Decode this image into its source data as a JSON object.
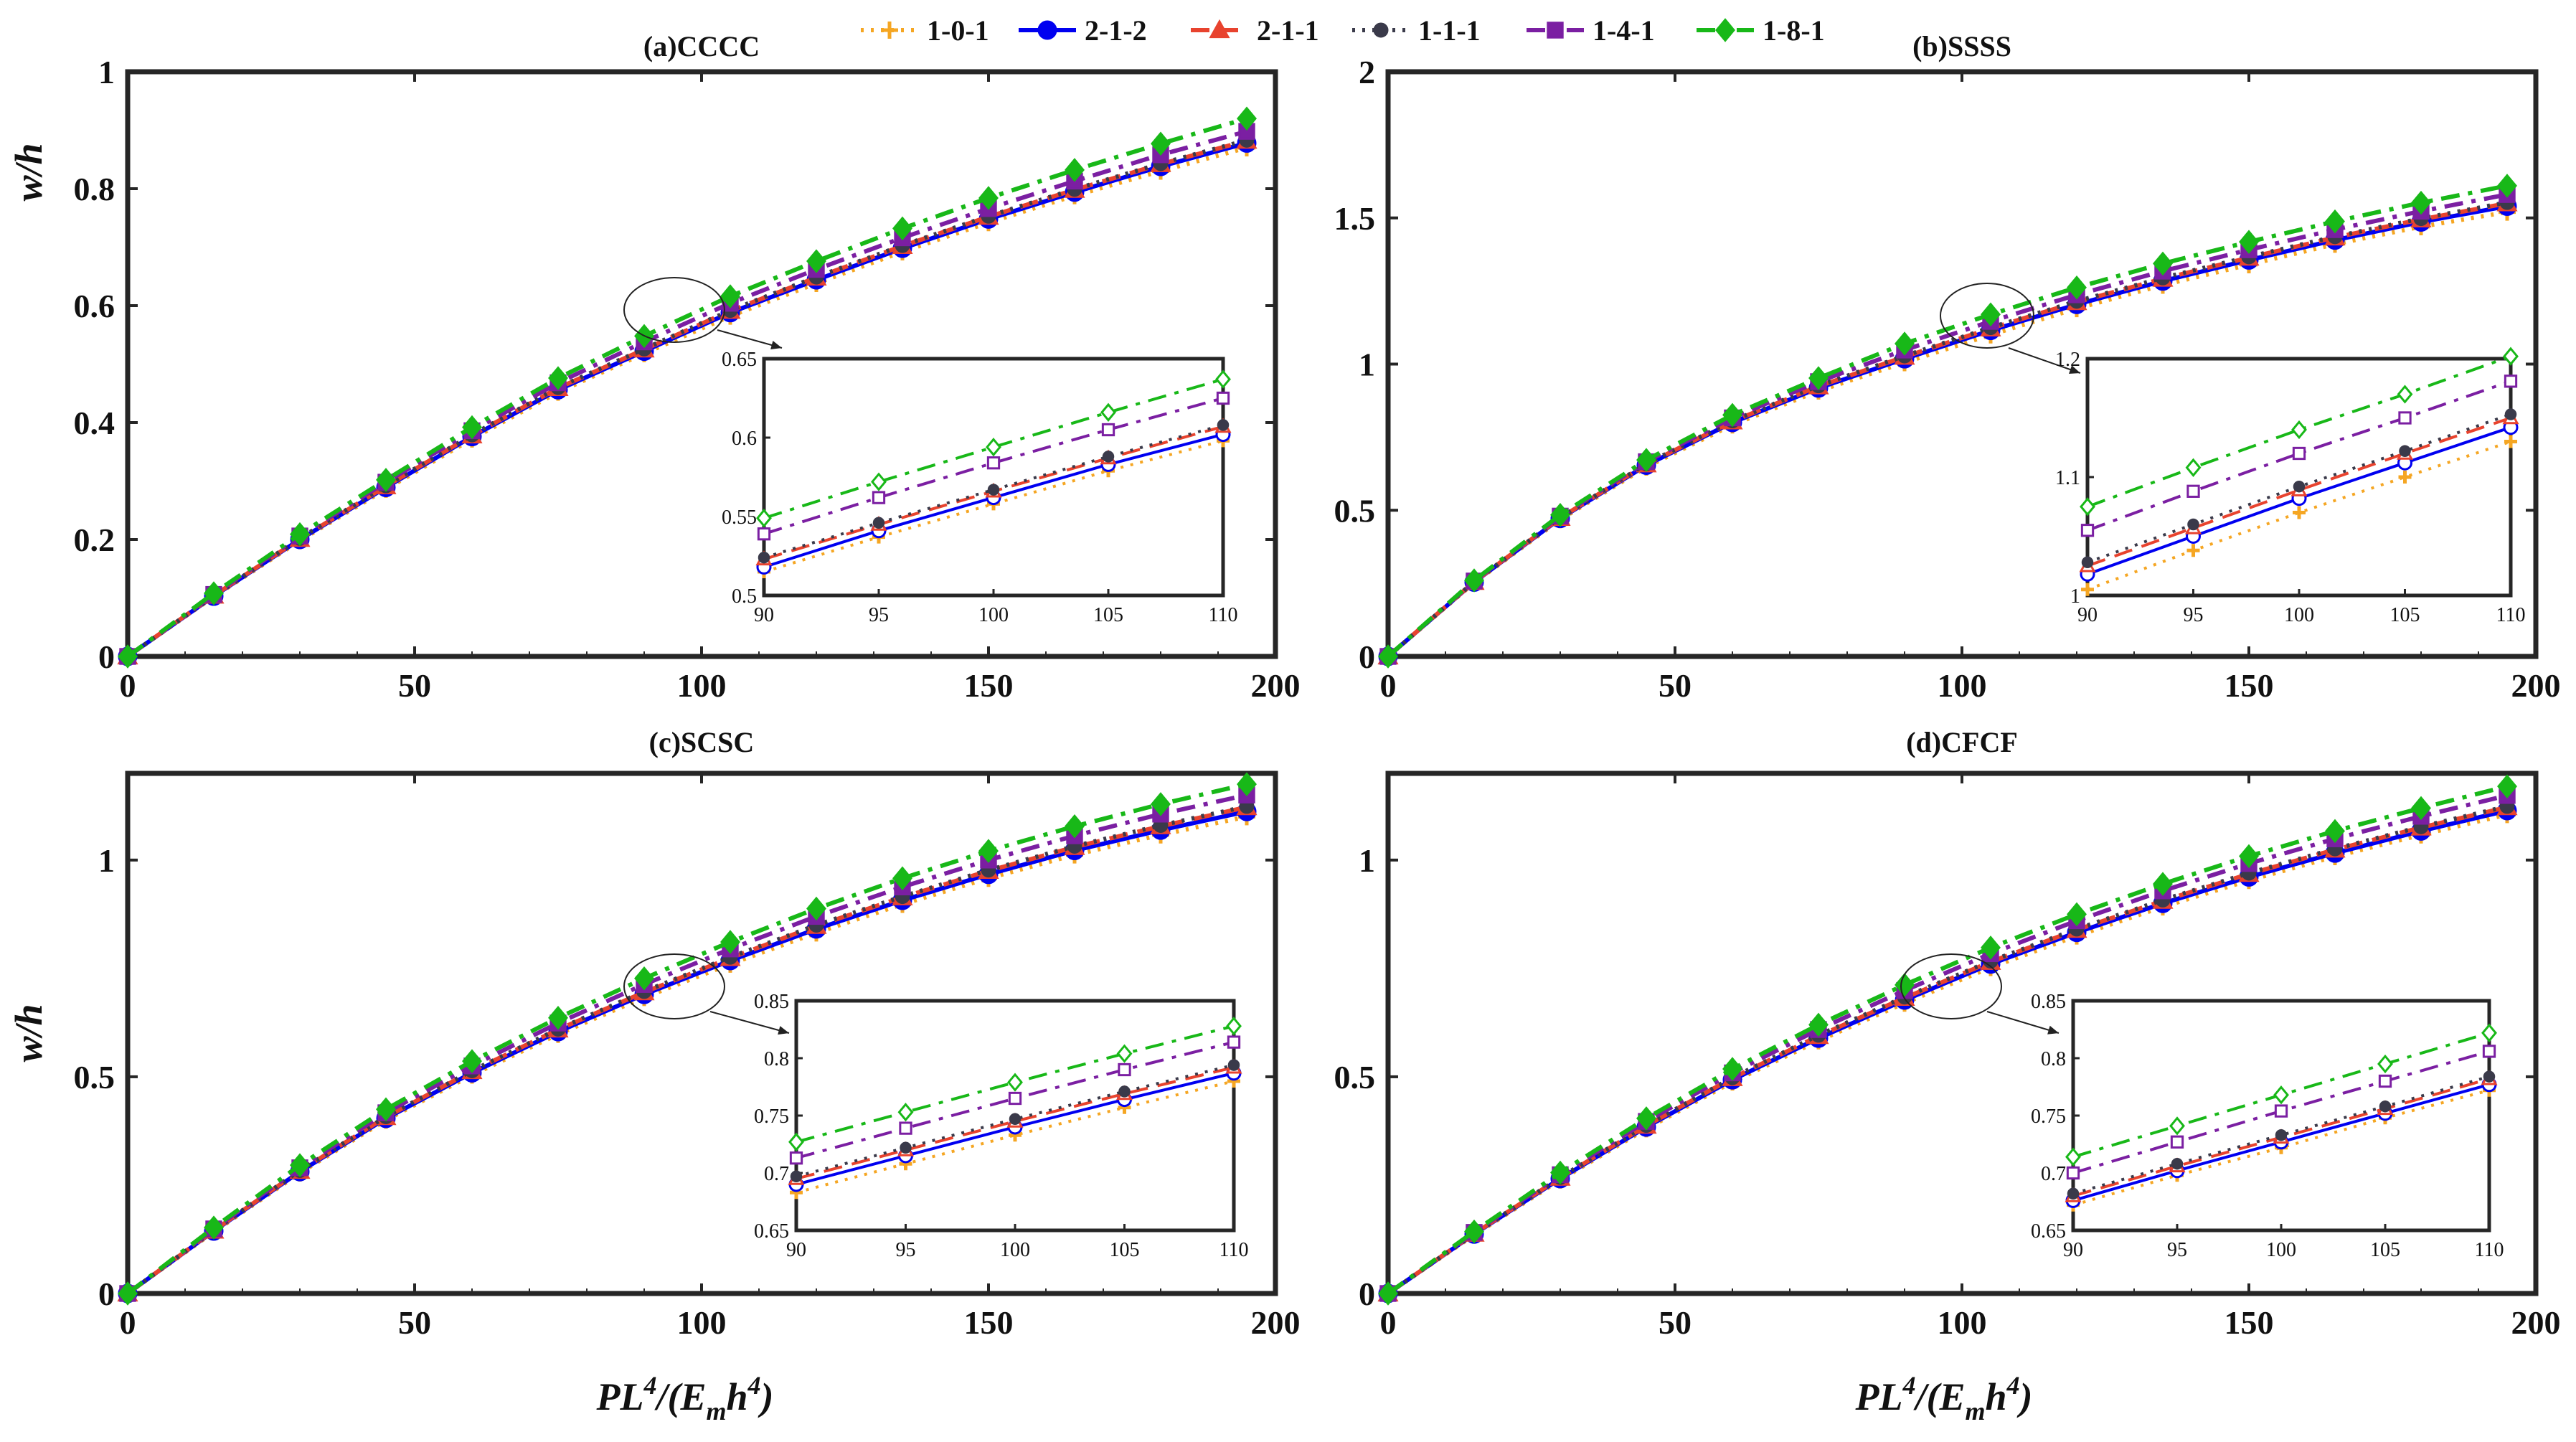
{
  "figure": {
    "ylabel": "w/h",
    "xlabel": {
      "base": "PL",
      "sup1": "4",
      "mid": "/(E",
      "sub": "m",
      "mid2": "h",
      "sup2": "4",
      "end": ")"
    }
  },
  "legend": [
    {
      "label": "1-0-1",
      "color": "#F5A623",
      "dash": "4,10",
      "marker": "plus"
    },
    {
      "label": "2-1-2",
      "color": "#0000F0",
      "dash": "none",
      "marker": "circle"
    },
    {
      "label": "2-1-1",
      "color": "#E8432E",
      "dash": "26,14",
      "marker": "triangle"
    },
    {
      "label": "1-1-1",
      "color": "#3A3A4A",
      "dash": "4,10",
      "marker": "dot"
    },
    {
      "label": "1-4-1",
      "color": "#7B1FA2",
      "dash": "26,12,6,12",
      "marker": "square"
    },
    {
      "label": "1-8-1",
      "color": "#18B818",
      "dash": "26,12,6,12",
      "marker": "diamond"
    }
  ],
  "chart_data": [
    {
      "type": "line",
      "title": "(a)CCCC",
      "xlabel": "PL^4/(E_m h^4)",
      "ylabel": "w/h",
      "xlim": [
        0,
        200
      ],
      "ylim": [
        0,
        1
      ],
      "xticks": [
        "0",
        "50",
        "100",
        "150",
        "200"
      ],
      "yticks": [
        "0",
        "0.2",
        "0.4",
        "0.6",
        "0.8",
        "1"
      ],
      "x": [
        0,
        15,
        30,
        45,
        60,
        75,
        90,
        105,
        120,
        135,
        150,
        165,
        180,
        195
      ],
      "series": [
        {
          "name": "1-0-1",
          "values": [
            0,
            0.102,
            0.198,
            0.286,
            0.372,
            0.452,
            0.518,
            0.582,
            0.638,
            0.692,
            0.742,
            0.788,
            0.83,
            0.87
          ]
        },
        {
          "name": "2-1-2",
          "values": [
            0,
            0.103,
            0.2,
            0.289,
            0.376,
            0.456,
            0.522,
            0.588,
            0.644,
            0.698,
            0.748,
            0.794,
            0.838,
            0.878
          ]
        },
        {
          "name": "2-1-1",
          "values": [
            0,
            0.104,
            0.201,
            0.291,
            0.378,
            0.459,
            0.525,
            0.591,
            0.648,
            0.702,
            0.752,
            0.798,
            0.842,
            0.882
          ]
        },
        {
          "name": "1-1-1",
          "values": [
            0,
            0.104,
            0.202,
            0.292,
            0.379,
            0.46,
            0.526,
            0.592,
            0.649,
            0.703,
            0.753,
            0.799,
            0.843,
            0.883
          ]
        },
        {
          "name": "1-4-1",
          "values": [
            0,
            0.106,
            0.206,
            0.298,
            0.386,
            0.468,
            0.538,
            0.604,
            0.662,
            0.716,
            0.766,
            0.813,
            0.858,
            0.898
          ]
        },
        {
          "name": "1-8-1",
          "values": [
            0,
            0.108,
            0.209,
            0.302,
            0.392,
            0.476,
            0.548,
            0.616,
            0.676,
            0.732,
            0.784,
            0.832,
            0.877,
            0.92
          ]
        }
      ],
      "inset": {
        "xlim": [
          90,
          110
        ],
        "ylim": [
          0.5,
          0.65
        ],
        "xticks": [
          "90",
          "95",
          "100",
          "105",
          "110"
        ],
        "yticks": [
          "0.5",
          "0.55",
          "0.6",
          "0.65"
        ],
        "x": [
          90,
          95,
          100,
          105,
          110
        ],
        "series": [
          {
            "name": "1-0-1",
            "values": [
              0.515,
              0.537,
              0.558,
              0.579,
              0.598
            ]
          },
          {
            "name": "2-1-2",
            "values": [
              0.518,
              0.541,
              0.562,
              0.583,
              0.602
            ]
          },
          {
            "name": "2-1-1",
            "values": [
              0.523,
              0.545,
              0.566,
              0.587,
              0.607
            ]
          },
          {
            "name": "1-1-1",
            "values": [
              0.524,
              0.546,
              0.567,
              0.588,
              0.608
            ]
          },
          {
            "name": "1-4-1",
            "values": [
              0.539,
              0.562,
              0.584,
              0.605,
              0.625
            ]
          },
          {
            "name": "1-8-1",
            "values": [
              0.549,
              0.572,
              0.594,
              0.616,
              0.637
            ]
          }
        ]
      }
    },
    {
      "type": "line",
      "title": "(b)SSSS",
      "xlabel": "PL^4/(E_m h^4)",
      "ylabel": "w/h",
      "xlim": [
        0,
        200
      ],
      "ylim": [
        0,
        2
      ],
      "xticks": [
        "0",
        "50",
        "100",
        "150",
        "200"
      ],
      "yticks": [
        "0",
        "0.5",
        "1",
        "1.5",
        "2"
      ],
      "x": [
        0,
        15,
        30,
        45,
        60,
        75,
        90,
        105,
        120,
        135,
        150,
        165,
        180,
        195
      ],
      "series": [
        {
          "name": "1-0-1",
          "values": [
            0,
            0.252,
            0.468,
            0.648,
            0.792,
            0.908,
            1.005,
            1.1,
            1.19,
            1.27,
            1.34,
            1.41,
            1.47,
            1.52
          ]
        },
        {
          "name": "2-1-2",
          "values": [
            0,
            0.254,
            0.472,
            0.654,
            0.8,
            0.918,
            1.018,
            1.115,
            1.204,
            1.284,
            1.356,
            1.424,
            1.486,
            1.54
          ]
        },
        {
          "name": "2-1-1",
          "values": [
            0,
            0.255,
            0.474,
            0.657,
            0.804,
            0.924,
            1.025,
            1.122,
            1.212,
            1.292,
            1.364,
            1.433,
            1.495,
            1.55
          ]
        },
        {
          "name": "1-1-1",
          "values": [
            0,
            0.256,
            0.475,
            0.659,
            0.806,
            0.926,
            1.028,
            1.125,
            1.215,
            1.295,
            1.367,
            1.436,
            1.498,
            1.553
          ]
        },
        {
          "name": "1-4-1",
          "values": [
            0,
            0.258,
            0.48,
            0.666,
            0.816,
            0.94,
            1.048,
            1.146,
            1.237,
            1.318,
            1.391,
            1.46,
            1.523,
            1.58
          ]
        },
        {
          "name": "1-8-1",
          "values": [
            0,
            0.26,
            0.484,
            0.672,
            0.826,
            0.952,
            1.07,
            1.17,
            1.262,
            1.344,
            1.418,
            1.488,
            1.552,
            1.61
          ]
        }
      ],
      "inset": {
        "xlim": [
          90,
          110
        ],
        "ylim": [
          1,
          1.2
        ],
        "xticks": [
          "90",
          "95",
          "100",
          "105",
          "110"
        ],
        "yticks": [
          "1",
          "1.1",
          "1.2"
        ],
        "x": [
          90,
          95,
          100,
          105,
          110
        ],
        "series": [
          {
            "name": "1-0-1",
            "values": [
              1.005,
              1.038,
              1.07,
              1.1,
              1.13
            ]
          },
          {
            "name": "2-1-2",
            "values": [
              1.018,
              1.05,
              1.082,
              1.112,
              1.142
            ]
          },
          {
            "name": "2-1-1",
            "values": [
              1.025,
              1.057,
              1.089,
              1.12,
              1.15
            ]
          },
          {
            "name": "1-1-1",
            "values": [
              1.028,
              1.06,
              1.092,
              1.122,
              1.153
            ]
          },
          {
            "name": "1-4-1",
            "values": [
              1.055,
              1.088,
              1.12,
              1.15,
              1.181
            ]
          },
          {
            "name": "1-8-1",
            "values": [
              1.075,
              1.108,
              1.14,
              1.17,
              1.202
            ]
          }
        ]
      }
    },
    {
      "type": "line",
      "title": "(c)SCSC",
      "xlabel": "PL^4/(E_m h^4)",
      "ylabel": "w/h",
      "xlim": [
        0,
        200
      ],
      "ylim": [
        0,
        1.2
      ],
      "xticks": [
        "0",
        "50",
        "100",
        "150",
        "200"
      ],
      "yticks": [
        "0",
        "0.5",
        "1"
      ],
      "x": [
        0,
        15,
        30,
        45,
        60,
        75,
        90,
        105,
        120,
        135,
        150,
        165,
        180,
        195
      ],
      "series": [
        {
          "name": "1-0-1",
          "values": [
            0,
            0.142,
            0.278,
            0.4,
            0.504,
            0.598,
            0.683,
            0.76,
            0.832,
            0.898,
            0.958,
            1.012,
            1.058,
            1.1
          ]
        },
        {
          "name": "2-1-2",
          "values": [
            0,
            0.144,
            0.281,
            0.404,
            0.509,
            0.604,
            0.69,
            0.768,
            0.841,
            0.907,
            0.967,
            1.022,
            1.069,
            1.112
          ]
        },
        {
          "name": "2-1-1",
          "values": [
            0,
            0.145,
            0.283,
            0.407,
            0.513,
            0.609,
            0.695,
            0.774,
            0.848,
            0.914,
            0.975,
            1.03,
            1.078,
            1.122
          ]
        },
        {
          "name": "1-1-1",
          "values": [
            0,
            0.146,
            0.284,
            0.408,
            0.514,
            0.61,
            0.697,
            0.776,
            0.85,
            0.916,
            0.977,
            1.032,
            1.08,
            1.124
          ]
        },
        {
          "name": "1-4-1",
          "values": [
            0,
            0.149,
            0.29,
            0.417,
            0.525,
            0.624,
            0.713,
            0.795,
            0.87,
            0.938,
            1.0,
            1.056,
            1.106,
            1.15
          ]
        },
        {
          "name": "1-8-1",
          "values": [
            0,
            0.152,
            0.296,
            0.425,
            0.536,
            0.636,
            0.727,
            0.811,
            0.888,
            0.958,
            1.021,
            1.078,
            1.129,
            1.175
          ]
        }
      ],
      "inset": {
        "xlim": [
          90,
          110
        ],
        "ylim": [
          0.65,
          0.85
        ],
        "xticks": [
          "90",
          "95",
          "100",
          "105",
          "110"
        ],
        "yticks": [
          "0.65",
          "0.7",
          "0.75",
          "0.8",
          "0.85"
        ],
        "x": [
          90,
          95,
          100,
          105,
          110
        ],
        "series": [
          {
            "name": "1-0-1",
            "values": [
              0.683,
              0.708,
              0.733,
              0.757,
              0.78
            ]
          },
          {
            "name": "2-1-2",
            "values": [
              0.69,
              0.715,
              0.74,
              0.764,
              0.787
            ]
          },
          {
            "name": "2-1-1",
            "values": [
              0.695,
              0.72,
              0.745,
              0.769,
              0.792
            ]
          },
          {
            "name": "1-1-1",
            "values": [
              0.697,
              0.722,
              0.747,
              0.771,
              0.794
            ]
          },
          {
            "name": "1-4-1",
            "values": [
              0.713,
              0.739,
              0.765,
              0.79,
              0.814
            ]
          },
          {
            "name": "1-8-1",
            "values": [
              0.727,
              0.753,
              0.779,
              0.804,
              0.828
            ]
          }
        ]
      }
    },
    {
      "type": "line",
      "title": "(d)CFCF",
      "xlabel": "PL^4/(E_m h^4)",
      "ylabel": "w/h",
      "xlim": [
        0,
        200
      ],
      "ylim": [
        0,
        1.2
      ],
      "xticks": [
        "0",
        "50",
        "100",
        "150",
        "200"
      ],
      "yticks": [
        "0",
        "0.5",
        "1"
      ],
      "x": [
        0,
        15,
        30,
        45,
        60,
        75,
        90,
        105,
        120,
        135,
        150,
        165,
        180,
        195
      ],
      "series": [
        {
          "name": "1-0-1",
          "values": [
            0,
            0.135,
            0.262,
            0.38,
            0.488,
            0.583,
            0.67,
            0.752,
            0.825,
            0.892,
            0.953,
            1.008,
            1.058,
            1.105
          ]
        },
        {
          "name": "2-1-2",
          "values": [
            0,
            0.137,
            0.265,
            0.384,
            0.493,
            0.589,
            0.677,
            0.76,
            0.833,
            0.9,
            0.961,
            1.016,
            1.067,
            1.114
          ]
        },
        {
          "name": "2-1-1",
          "values": [
            0,
            0.138,
            0.267,
            0.387,
            0.497,
            0.594,
            0.682,
            0.765,
            0.839,
            0.906,
            0.968,
            1.024,
            1.075,
            1.122
          ]
        },
        {
          "name": "1-1-1",
          "values": [
            0,
            0.138,
            0.268,
            0.388,
            0.498,
            0.596,
            0.684,
            0.767,
            0.841,
            0.908,
            0.97,
            1.026,
            1.077,
            1.124
          ]
        },
        {
          "name": "1-4-1",
          "values": [
            0,
            0.141,
            0.274,
            0.397,
            0.509,
            0.609,
            0.699,
            0.784,
            0.86,
            0.929,
            0.992,
            1.049,
            1.101,
            1.149
          ]
        },
        {
          "name": "1-8-1",
          "values": [
            0,
            0.143,
            0.279,
            0.404,
            0.518,
            0.62,
            0.712,
            0.798,
            0.875,
            0.945,
            1.009,
            1.067,
            1.12,
            1.17
          ]
        }
      ],
      "inset": {
        "xlim": [
          90,
          110
        ],
        "ylim": [
          0.65,
          0.85
        ],
        "xticks": [
          "90",
          "95",
          "100",
          "105",
          "110"
        ],
        "yticks": [
          "0.65",
          "0.7",
          "0.75",
          "0.8",
          "0.85"
        ],
        "x": [
          90,
          95,
          100,
          105,
          110
        ],
        "series": [
          {
            "name": "1-0-1",
            "values": [
              0.672,
              0.698,
              0.722,
              0.748,
              0.772
            ]
          },
          {
            "name": "2-1-2",
            "values": [
              0.676,
              0.702,
              0.727,
              0.752,
              0.777
            ]
          },
          {
            "name": "2-1-1",
            "values": [
              0.68,
              0.706,
              0.731,
              0.756,
              0.782
            ]
          },
          {
            "name": "1-1-1",
            "values": [
              0.682,
              0.708,
              0.733,
              0.758,
              0.784
            ]
          },
          {
            "name": "1-4-1",
            "values": [
              0.7,
              0.727,
              0.754,
              0.78,
              0.806
            ]
          },
          {
            "name": "1-8-1",
            "values": [
              0.714,
              0.741,
              0.768,
              0.795,
              0.822
            ]
          }
        ]
      }
    }
  ]
}
